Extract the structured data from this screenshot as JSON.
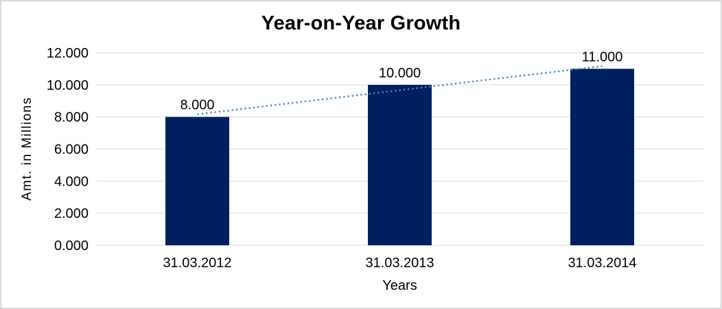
{
  "chart_data": {
    "type": "bar",
    "title": "Year-on-Year Growth",
    "xlabel": "Years",
    "ylabel": "Amt. in Millions",
    "categories": [
      "31.03.2012",
      "31.03.2013",
      "31.03.2014"
    ],
    "values": [
      8000,
      10000,
      11000
    ],
    "data_labels": [
      "8.000",
      "10.000",
      "11.000"
    ],
    "ytick_values": [
      0,
      2000,
      4000,
      6000,
      8000,
      10000,
      12000
    ],
    "ytick_labels": [
      "0.000",
      "2.000",
      "4.000",
      "6.000",
      "8.000",
      "10.000",
      "12.000"
    ],
    "ylim": [
      0,
      12000
    ],
    "grid": true,
    "legend": "none",
    "bar_color": "#002060",
    "gridline_color": "#d9d9d9",
    "frame_border_color": "#d9d9d9",
    "text_color": "#000000",
    "background_color": "#ffffff",
    "trendline": {
      "type": "linear",
      "style": "dotted",
      "color": "#4e87c8"
    }
  }
}
